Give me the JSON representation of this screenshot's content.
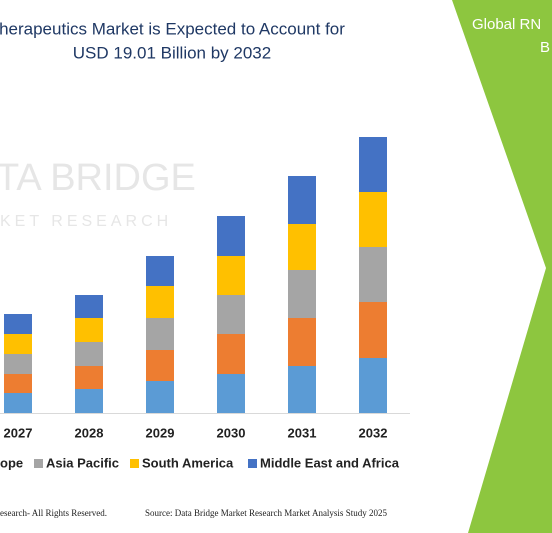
{
  "chart_data": {
    "type": "stacked_bar",
    "title": "herapeutics Market is Expected to Account for",
    "subtitle": "USD 19.01 Billion by 2032",
    "categories": [
      "2027",
      "2028",
      "2029",
      "2030",
      "2031",
      "2032"
    ],
    "series": [
      {
        "color": "#5b9bd5",
        "values": [
          20,
          24,
          32,
          39,
          47,
          55
        ]
      },
      {
        "name": "ope",
        "color": "#ed7d31",
        "values": [
          19,
          23,
          31,
          40,
          48,
          56
        ]
      },
      {
        "name": "Asia Pacific",
        "color": "#a5a5a5",
        "values": [
          20,
          24,
          32,
          39,
          48,
          55
        ]
      },
      {
        "name": "South America",
        "color": "#ffc000",
        "values": [
          20,
          24,
          32,
          39,
          46,
          55
        ]
      },
      {
        "name": "Middle East and Africa",
        "color": "#4472c4",
        "values": [
          20,
          23,
          30,
          40,
          48,
          55
        ]
      }
    ]
  },
  "watermark": [
    "TA BRIDGE",
    "KET RESEARCH"
  ],
  "side_panel": [
    "Global RN",
    "B"
  ],
  "footer": [
    "esearch- All Rights Reserved.",
    "Source: Data Bridge Market Research Market Analysis Study 2025"
  ]
}
